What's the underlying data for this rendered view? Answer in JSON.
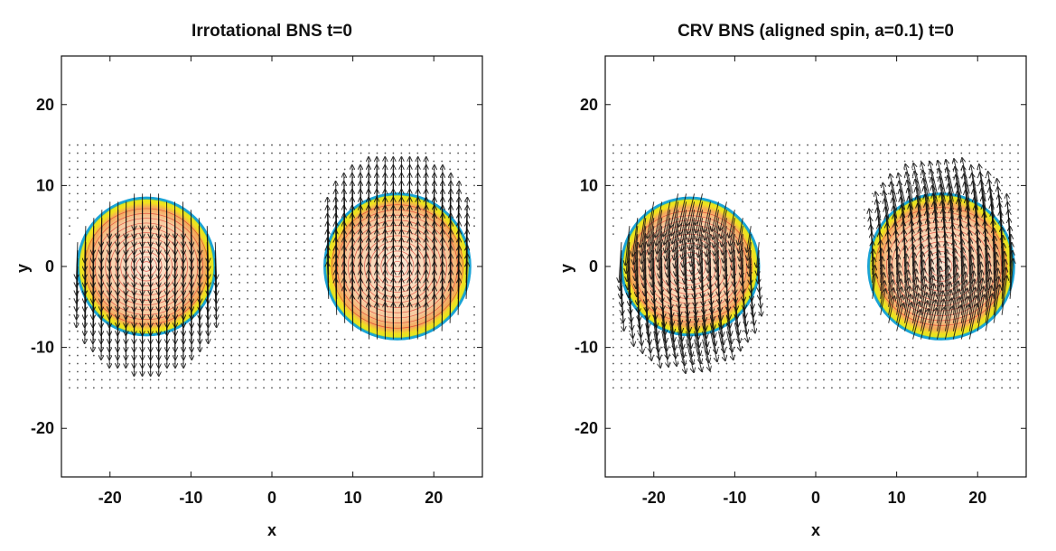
{
  "chart_data": [
    {
      "type": "vector-field",
      "title": "Irrotational BNS t=0",
      "xlabel": "x",
      "ylabel": "y",
      "xlim": [
        -26,
        26
      ],
      "ylim": [
        -26,
        26
      ],
      "xticks": [
        -20,
        -10,
        0,
        10,
        20
      ],
      "yticks": [
        -20,
        -10,
        0,
        10,
        20
      ],
      "grid_points": {
        "x_range": [
          -25,
          25
        ],
        "y_range": [
          -15,
          15
        ],
        "step": 1
      },
      "stars": [
        {
          "name": "left-star",
          "center": [
            -15.5,
            0
          ],
          "radius": 8.5,
          "velocity_direction": "down",
          "arrow_scale": 4.5
        },
        {
          "name": "right-star",
          "center": [
            15.5,
            0
          ],
          "radius": 9,
          "velocity_direction": "up",
          "arrow_scale": 4.5
        }
      ],
      "spin_a": 0,
      "colors": {
        "surface_outer": "#1aa3d6",
        "surface_mid": "#f2e51b",
        "interior": "#f6c9a3",
        "contours": "#d9342b",
        "arrows": "#111111"
      }
    },
    {
      "type": "vector-field",
      "title": "CRV BNS (aligned spin, a=0.1) t=0",
      "xlabel": "x",
      "ylabel": "y",
      "xlim": [
        -26,
        26
      ],
      "ylim": [
        -26,
        26
      ],
      "xticks": [
        -20,
        -10,
        0,
        10,
        20
      ],
      "yticks": [
        -20,
        -10,
        0,
        10,
        20
      ],
      "grid_points": {
        "x_range": [
          -25,
          25
        ],
        "y_range": [
          -15,
          15
        ],
        "step": 1
      },
      "stars": [
        {
          "name": "left-star",
          "center": [
            -15.5,
            0
          ],
          "radius": 8.5,
          "velocity_direction": "down",
          "arrow_scale": 4.0
        },
        {
          "name": "right-star",
          "center": [
            15.5,
            0
          ],
          "radius": 9,
          "velocity_direction": "up",
          "arrow_scale": 4.0
        }
      ],
      "spin_a": 0.1,
      "colors": {
        "surface_outer": "#1aa3d6",
        "surface_mid": "#f2e51b",
        "interior": "#f6c9a3",
        "contours": "#d9342b",
        "arrows": "#111111"
      }
    }
  ]
}
